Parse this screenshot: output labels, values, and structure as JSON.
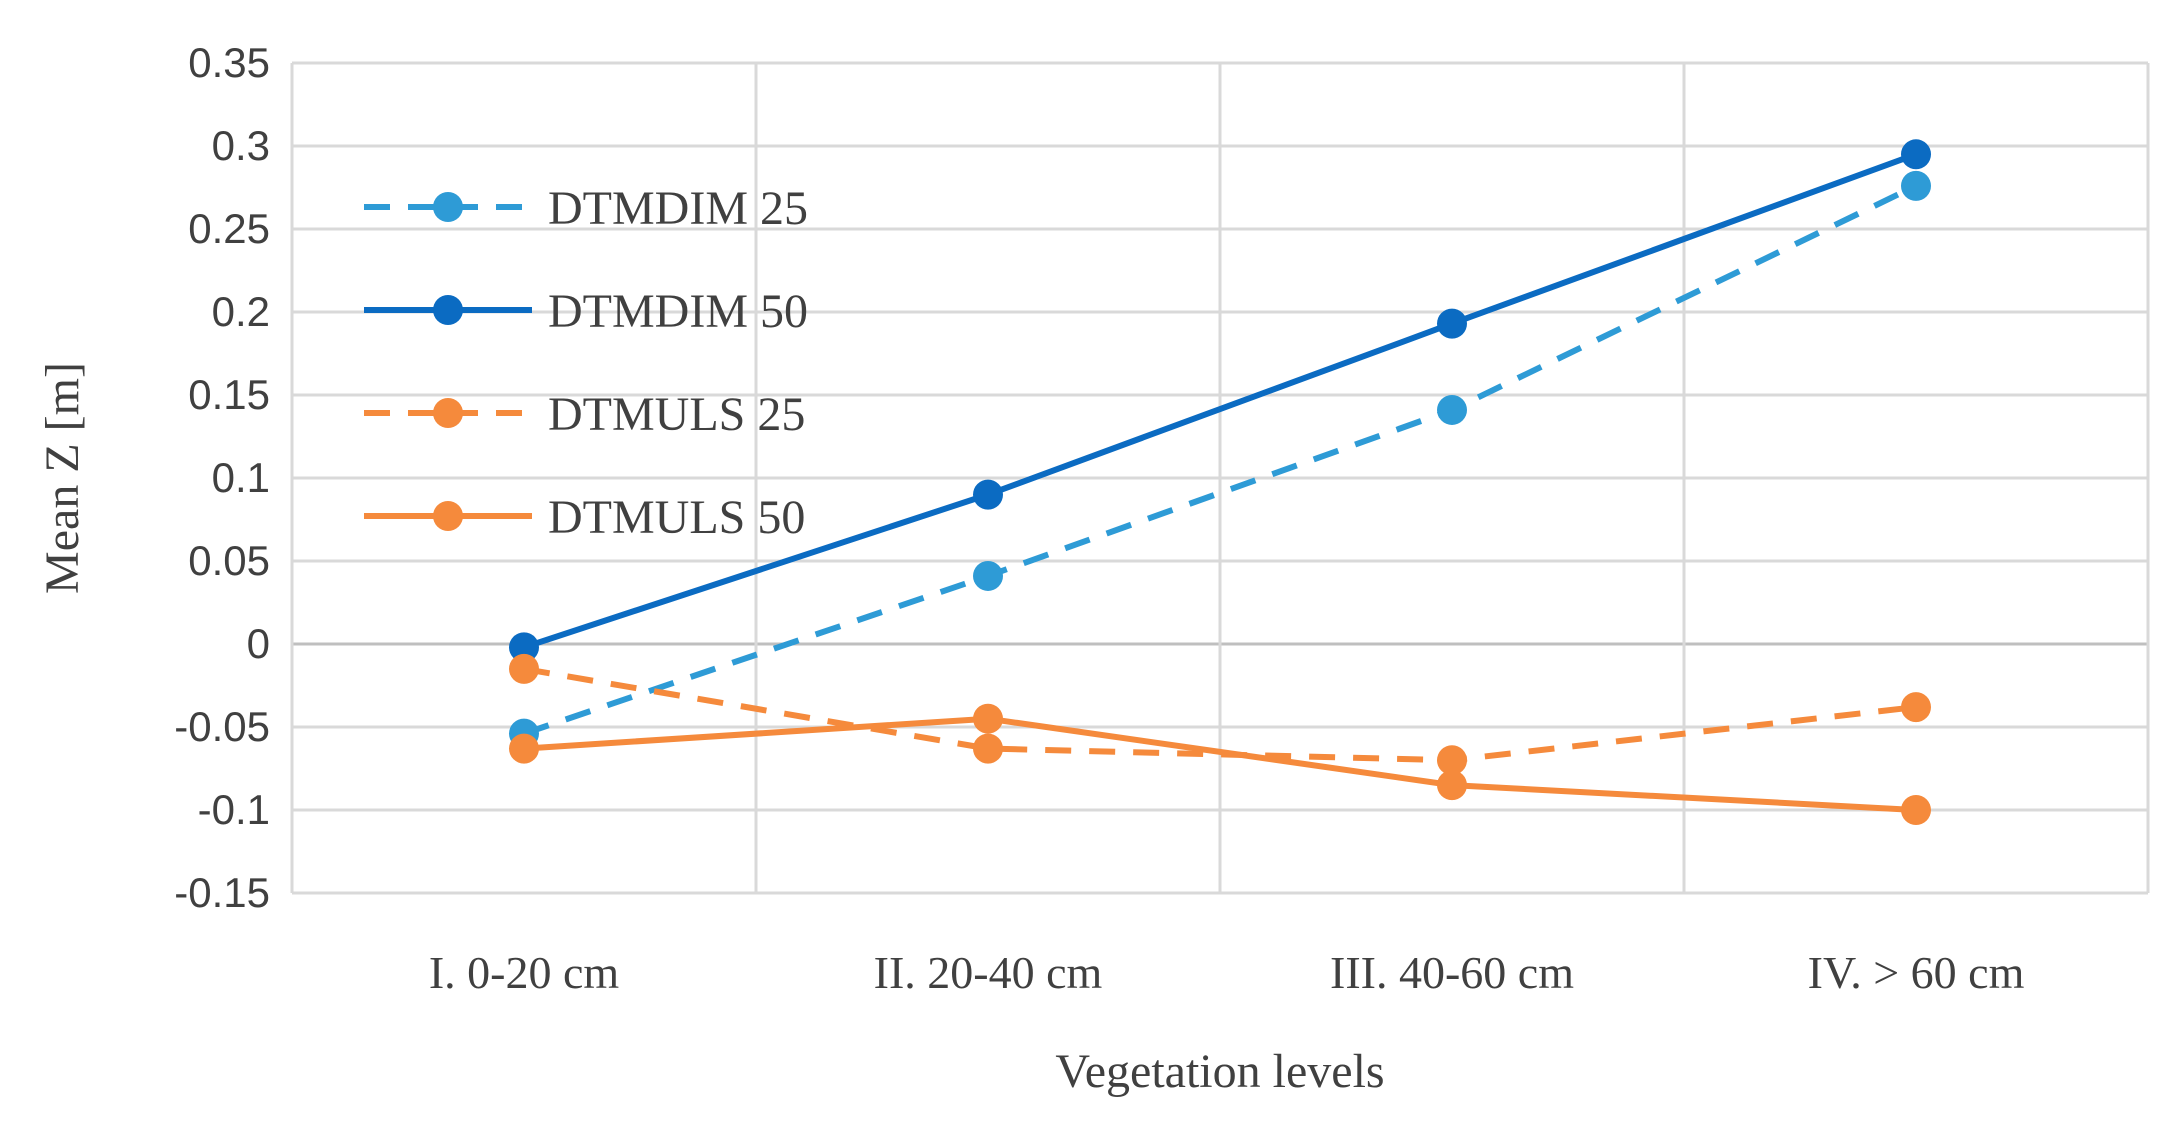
{
  "chart_data": {
    "type": "line",
    "title": "",
    "xlabel": "Vegetation levels",
    "ylabel": "Mean Z [m]",
    "ylim": [
      -0.15,
      0.35
    ],
    "ytick_step": 0.05,
    "yticks": [
      "0.35",
      "0.3",
      "0.25",
      "0.2",
      "0.15",
      "0.1",
      "0.05",
      "0",
      "-0.05",
      "-0.1",
      "-0.15"
    ],
    "categories": [
      "I. 0-20 cm",
      "II. 20-40 cm",
      "III. 40-60 cm",
      "IV. > 60 cm"
    ],
    "grid": true,
    "legend_position": "top-left",
    "series": [
      {
        "name": "DTMDIM 25",
        "values": [
          -0.054,
          0.041,
          0.141,
          0.276
        ],
        "color": "#2e9bd6",
        "dashed": true
      },
      {
        "name": "DTMDIM 50",
        "values": [
          -0.002,
          0.09,
          0.193,
          0.295
        ],
        "color": "#0b6bc2",
        "dashed": false
      },
      {
        "name": "DTMULS 25",
        "values": [
          -0.015,
          -0.063,
          -0.07,
          -0.038
        ],
        "color": "#f58a3c",
        "dashed": true
      },
      {
        "name": "DTMULS 50",
        "values": [
          -0.063,
          -0.045,
          -0.085,
          -0.1
        ],
        "color": "#f58a3c",
        "dashed": false
      }
    ]
  }
}
